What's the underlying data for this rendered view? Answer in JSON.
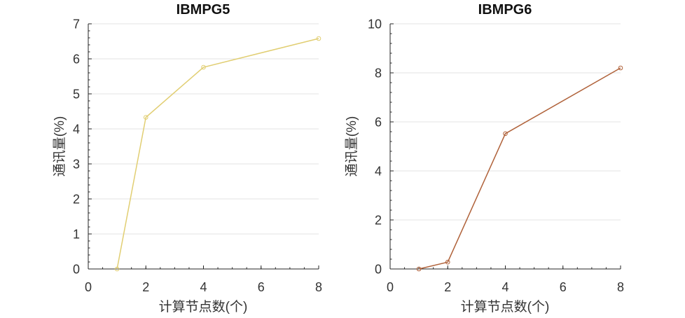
{
  "chart_data": [
    {
      "type": "line",
      "title": "IBMPG5",
      "xlabel": "计算节点数(个)",
      "ylabel": "通讯量(%)",
      "xlim": [
        0,
        8
      ],
      "ylim": [
        0,
        7
      ],
      "xticks": [
        "0",
        "2",
        "4",
        "6",
        "8"
      ],
      "yticks": [
        "0",
        "1",
        "2",
        "3",
        "4",
        "5",
        "6",
        "7"
      ],
      "grid": "horizontal",
      "color": "#e1ce72",
      "series": [
        {
          "x": [
            1,
            2,
            4,
            8
          ],
          "y": [
            0,
            4.33,
            5.76,
            6.58
          ]
        }
      ]
    },
    {
      "type": "line",
      "title": "IBMPG6",
      "xlabel": "计算节点数(个)",
      "ylabel": "通讯量(%)",
      "xlim": [
        0,
        8
      ],
      "ylim": [
        0,
        10
      ],
      "xticks": [
        "0",
        "2",
        "4",
        "6",
        "8"
      ],
      "yticks": [
        "0",
        "2",
        "4",
        "6",
        "8",
        "10"
      ],
      "grid": "horizontal",
      "color": "#b0623a",
      "series": [
        {
          "x": [
            1,
            2,
            4,
            8
          ],
          "y": [
            0,
            0.28,
            5.52,
            8.2
          ]
        }
      ]
    }
  ]
}
